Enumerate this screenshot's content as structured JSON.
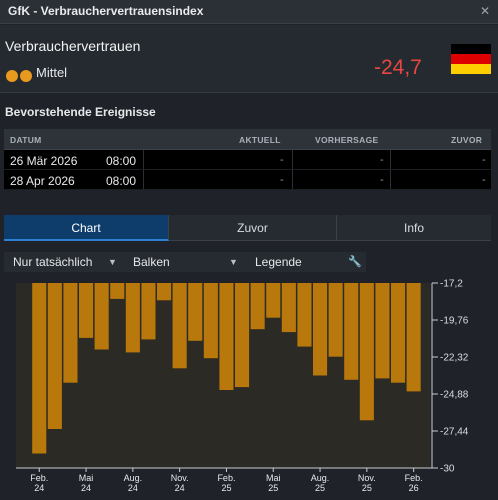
{
  "window": {
    "title": "GfK - Verbrauchervertrauensindex"
  },
  "indicator": {
    "name": "Verbrauchervertrauen",
    "importance": "Mittel",
    "importance_level": 2,
    "value": "-24,7",
    "value_color": "#e8473f",
    "flag_icon": "germany-flag-icon"
  },
  "events": {
    "title": "Bevorstehende Ereignisse",
    "columns": {
      "date": "DATUM",
      "actual": "AKTUELL",
      "forecast": "VORHERSAGE",
      "previous": "ZUVOR"
    },
    "rows": [
      {
        "date": "26 Mär 2026",
        "time": "08:00",
        "actual": "-",
        "forecast": "-",
        "previous": "-"
      },
      {
        "date": "28 Apr 2026",
        "time": "08:00",
        "actual": "-",
        "forecast": "-",
        "previous": "-"
      }
    ]
  },
  "tabs": [
    {
      "label": "Chart",
      "active": true
    },
    {
      "label": "Zuvor",
      "active": false
    },
    {
      "label": "Info",
      "active": false
    }
  ],
  "toolbar": {
    "filter": "Nur tatsächlich",
    "chart_type": "Balken",
    "legend": "Legende",
    "settings_icon": "wrench-icon"
  },
  "chart_data": {
    "type": "bar",
    "bar_color": "#b8780c",
    "ylim": [
      -30,
      -17.2
    ],
    "yticks": [
      "-17,2",
      "-19,76",
      "-22,32",
      "-24,88",
      "-27,44",
      "-30"
    ],
    "x_ticks": [
      {
        "label": [
          "Feb.",
          "24"
        ],
        "index": 0
      },
      {
        "label": [
          "Mai",
          "24"
        ],
        "index": 3
      },
      {
        "label": [
          "Aug.",
          "24"
        ],
        "index": 6
      },
      {
        "label": [
          "Nov.",
          "24"
        ],
        "index": 9
      },
      {
        "label": [
          "Feb.",
          "25"
        ],
        "index": 12
      },
      {
        "label": [
          "Mai",
          "25"
        ],
        "index": 15
      },
      {
        "label": [
          "Aug.",
          "25"
        ],
        "index": 18
      },
      {
        "label": [
          "Nov.",
          "25"
        ],
        "index": 21
      },
      {
        "label": [
          "Feb.",
          "26"
        ],
        "index": 24
      }
    ],
    "values": [
      -29.0,
      -27.3,
      -24.1,
      -21.0,
      -21.8,
      -18.3,
      -22.0,
      -21.1,
      -18.4,
      -23.1,
      -21.2,
      -22.4,
      -24.6,
      -24.4,
      -20.4,
      -19.6,
      -20.6,
      -21.6,
      -23.6,
      -22.3,
      -23.9,
      -26.7,
      -23.8,
      -24.1,
      -24.7
    ]
  }
}
